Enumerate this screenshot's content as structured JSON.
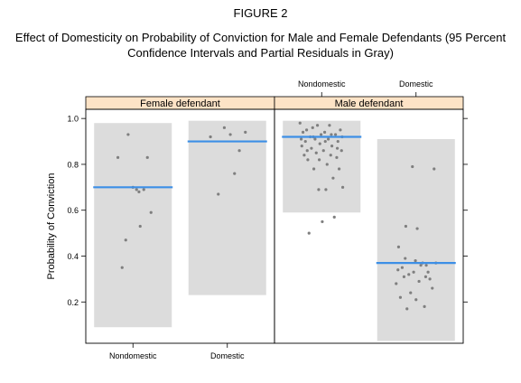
{
  "figure": {
    "label": "FIGURE 2",
    "title": "Effect of Domesticity on Probability of Conviction for Male and Female Defendants (95 Percent Confidence Intervals and Partial Residuals in Gray)"
  },
  "colors": {
    "ci_band": "#dcdcdc",
    "estimate_line": "#3d8fe6",
    "residual_point": "#7f7f7f",
    "strip_bg": "#fde3c6"
  },
  "chart_data": {
    "type": "scatter",
    "ylabel": "Probability of Conviction",
    "ylim": [
      0.02,
      1.04
    ],
    "yticks": [
      "0.2",
      "0.4",
      "0.6",
      "0.8",
      "1.0"
    ],
    "categories": [
      "Nondomestic",
      "Domestic"
    ],
    "grid": false,
    "panels": [
      {
        "strip": "Female defendant",
        "groups": [
          {
            "category": "Nondomestic",
            "estimate": 0.7,
            "ci": [
              0.09,
              0.98
            ],
            "residuals": [
              {
                "x": -0.25,
                "y": 0.83
              },
              {
                "x": -0.18,
                "y": 0.35
              },
              {
                "x": -0.12,
                "y": 0.47
              },
              {
                "x": -0.08,
                "y": 0.93
              },
              {
                "x": 0.0,
                "y": 0.7
              },
              {
                "x": 0.06,
                "y": 0.69
              },
              {
                "x": 0.1,
                "y": 0.68
              },
              {
                "x": 0.12,
                "y": 0.53
              },
              {
                "x": 0.18,
                "y": 0.69
              },
              {
                "x": 0.24,
                "y": 0.83
              },
              {
                "x": 0.3,
                "y": 0.59
              }
            ]
          },
          {
            "category": "Domestic",
            "estimate": 0.9,
            "ci": [
              0.23,
              0.99
            ],
            "residuals": [
              {
                "x": -0.28,
                "y": 0.92
              },
              {
                "x": -0.15,
                "y": 0.67
              },
              {
                "x": -0.05,
                "y": 0.96
              },
              {
                "x": 0.05,
                "y": 0.93
              },
              {
                "x": 0.12,
                "y": 0.76
              },
              {
                "x": 0.2,
                "y": 0.86
              },
              {
                "x": 0.3,
                "y": 0.94
              }
            ]
          }
        ]
      },
      {
        "strip": "Male defendant",
        "top_labels": [
          "Nondomestic",
          "Domestic"
        ],
        "groups": [
          {
            "category": "Nondomestic",
            "estimate": 0.92,
            "ci": [
              0.59,
              0.99
            ],
            "residuals": [
              {
                "x": -0.36,
                "y": 0.98
              },
              {
                "x": -0.33,
                "y": 0.88
              },
              {
                "x": -0.31,
                "y": 0.94
              },
              {
                "x": -0.29,
                "y": 0.84
              },
              {
                "x": -0.27,
                "y": 0.9
              },
              {
                "x": -0.25,
                "y": 0.95
              },
              {
                "x": -0.23,
                "y": 0.82
              },
              {
                "x": -0.21,
                "y": 0.5
              },
              {
                "x": -0.19,
                "y": 0.92
              },
              {
                "x": -0.17,
                "y": 0.87
              },
              {
                "x": -0.15,
                "y": 0.96
              },
              {
                "x": -0.13,
                "y": 0.78
              },
              {
                "x": -0.11,
                "y": 0.91
              },
              {
                "x": -0.09,
                "y": 0.85
              },
              {
                "x": -0.07,
                "y": 0.97
              },
              {
                "x": -0.05,
                "y": 0.69
              },
              {
                "x": -0.03,
                "y": 0.89
              },
              {
                "x": -0.01,
                "y": 0.93
              },
              {
                "x": 0.01,
                "y": 0.55
              },
              {
                "x": 0.03,
                "y": 0.86
              },
              {
                "x": 0.05,
                "y": 0.94
              },
              {
                "x": 0.07,
                "y": 0.69
              },
              {
                "x": 0.09,
                "y": 0.8
              },
              {
                "x": 0.11,
                "y": 0.91
              },
              {
                "x": 0.13,
                "y": 0.97
              },
              {
                "x": 0.15,
                "y": 0.84
              },
              {
                "x": 0.17,
                "y": 0.88
              },
              {
                "x": 0.19,
                "y": 0.74
              },
              {
                "x": 0.21,
                "y": 0.57
              },
              {
                "x": 0.23,
                "y": 0.93
              },
              {
                "x": 0.25,
                "y": 0.83
              },
              {
                "x": 0.27,
                "y": 0.9
              },
              {
                "x": 0.29,
                "y": 0.78
              },
              {
                "x": 0.31,
                "y": 0.95
              },
              {
                "x": 0.33,
                "y": 0.86
              },
              {
                "x": 0.35,
                "y": 0.7
              },
              {
                "x": -0.34,
                "y": 0.91
              },
              {
                "x": -0.24,
                "y": 0.86
              },
              {
                "x": -0.14,
                "y": 0.92
              },
              {
                "x": -0.04,
                "y": 0.82
              },
              {
                "x": 0.06,
                "y": 0.9
              },
              {
                "x": 0.16,
                "y": 0.93
              },
              {
                "x": 0.26,
                "y": 0.87
              },
              {
                "x": 0.34,
                "y": 0.92
              }
            ]
          },
          {
            "category": "Domestic",
            "estimate": 0.37,
            "ci": [
              0.03,
              0.91
            ],
            "residuals": [
              {
                "x": -0.33,
                "y": 0.28
              },
              {
                "x": -0.29,
                "y": 0.44
              },
              {
                "x": -0.26,
                "y": 0.22
              },
              {
                "x": -0.23,
                "y": 0.35
              },
              {
                "x": -0.2,
                "y": 0.31
              },
              {
                "x": -0.17,
                "y": 0.53
              },
              {
                "x": -0.15,
                "y": 0.17
              },
              {
                "x": -0.12,
                "y": 0.32
              },
              {
                "x": -0.09,
                "y": 0.24
              },
              {
                "x": -0.06,
                "y": 0.79
              },
              {
                "x": -0.04,
                "y": 0.33
              },
              {
                "x": -0.01,
                "y": 0.38
              },
              {
                "x": 0.02,
                "y": 0.52
              },
              {
                "x": 0.05,
                "y": 0.29
              },
              {
                "x": 0.08,
                "y": 0.36
              },
              {
                "x": 0.11,
                "y": 0.37
              },
              {
                "x": 0.14,
                "y": 0.18
              },
              {
                "x": 0.17,
                "y": 0.36
              },
              {
                "x": 0.2,
                "y": 0.33
              },
              {
                "x": 0.23,
                "y": 0.3
              },
              {
                "x": 0.27,
                "y": 0.26
              },
              {
                "x": 0.3,
                "y": 0.78
              },
              {
                "x": 0.33,
                "y": 0.37
              },
              {
                "x": -0.3,
                "y": 0.34
              },
              {
                "x": -0.18,
                "y": 0.39
              },
              {
                "x": 0.0,
                "y": 0.21
              },
              {
                "x": 0.16,
                "y": 0.31
              }
            ]
          }
        ]
      }
    ]
  }
}
